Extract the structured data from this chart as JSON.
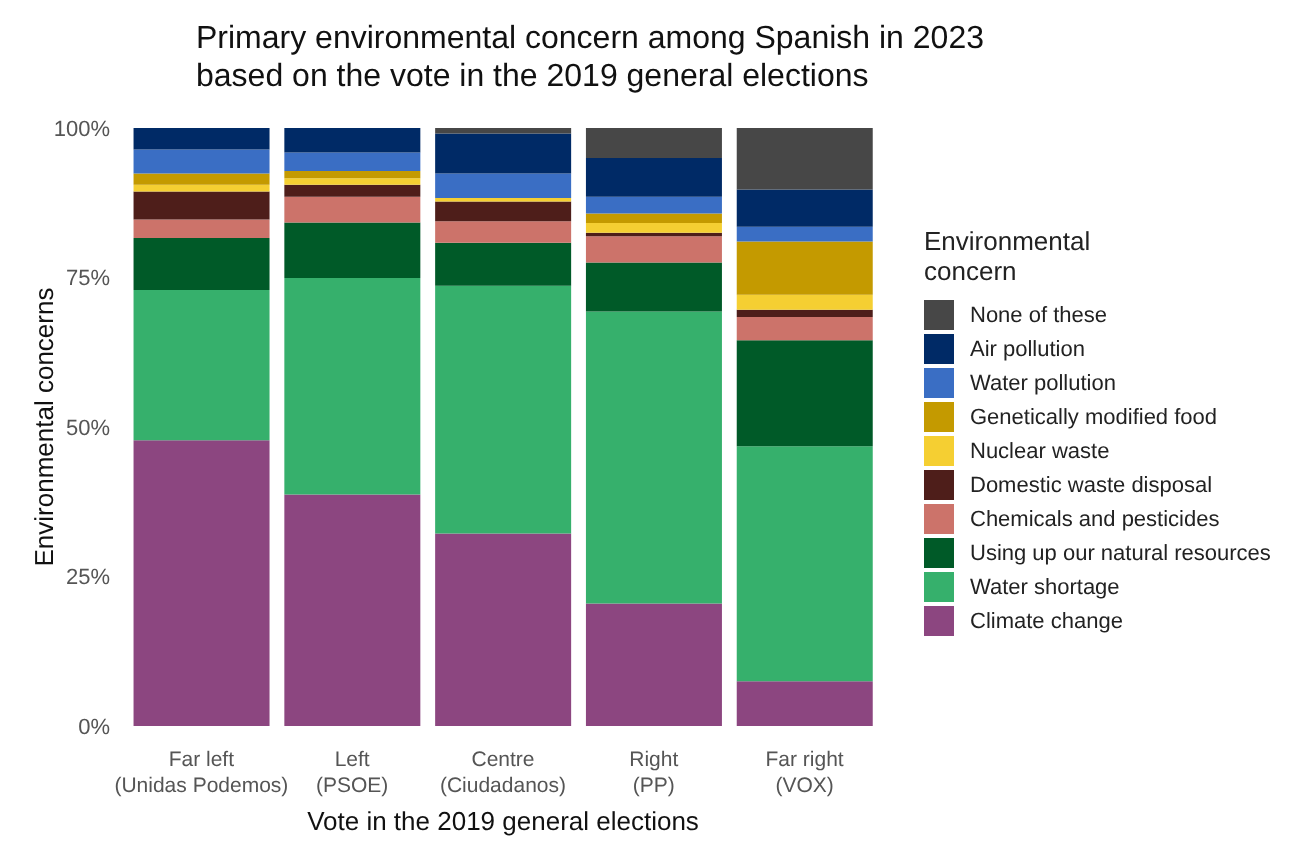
{
  "chart_data": {
    "type": "bar",
    "stacked": true,
    "title": "Primary environmental concern among Spanish in 2023\n based on the vote in the 2019 general elections",
    "xlabel": "Vote in the 2019 general elections",
    "ylabel": "Environmental concerns",
    "legend_title": "Environmental\n concern",
    "legend": "right",
    "grid": false,
    "categories": [
      "Far left\n(Unidas Podemos)",
      "Left\n(PSOE)",
      "Centre\n(Ciudadanos)",
      "Right\n(PP)",
      "Far right\n(VOX)"
    ],
    "ylim": [
      0,
      100
    ],
    "yticks": [
      {
        "value": 0,
        "label": "0%"
      },
      {
        "value": 25,
        "label": "25%"
      },
      {
        "value": 50,
        "label": "50%"
      },
      {
        "value": 75,
        "label": "75%"
      },
      {
        "value": 100,
        "label": "100%"
      }
    ],
    "series": [
      {
        "name": "Climate change",
        "color": "#8c4680",
        "values": [
          47.8,
          38.7,
          32.2,
          20.5,
          7.5
        ]
      },
      {
        "name": "Water shortage",
        "color": "#36b06c",
        "values": [
          25.1,
          36.2,
          41.4,
          48.8,
          39.3
        ]
      },
      {
        "name": "Using up our natural resources",
        "color": "#005a28",
        "values": [
          8.7,
          9.3,
          7.2,
          8.2,
          17.7
        ]
      },
      {
        "name": "Chemicals and pesticides",
        "color": "#cc736a",
        "values": [
          3.1,
          4.3,
          3.6,
          4.4,
          3.9
        ]
      },
      {
        "name": "Domestic waste disposal",
        "color": "#4e1e1a",
        "values": [
          4.7,
          2.0,
          3.3,
          0.6,
          1.2
        ]
      },
      {
        "name": "Nuclear waste",
        "color": "#f5cf32",
        "values": [
          1.1,
          1.1,
          0.6,
          1.6,
          2.5
        ]
      },
      {
        "name": "Genetically modified food",
        "color": "#c49a00",
        "values": [
          1.9,
          1.2,
          0,
          1.6,
          8.9
        ]
      },
      {
        "name": "Water pollution",
        "color": "#3a6ec4",
        "values": [
          4.0,
          3.1,
          4.1,
          2.8,
          2.5
        ]
      },
      {
        "name": "Air pollution",
        "color": "#002a66",
        "values": [
          3.6,
          4.1,
          6.7,
          6.5,
          6.2
        ]
      },
      {
        "name": "None of these",
        "color": "#474747",
        "values": [
          0,
          0,
          0.9,
          5.0,
          10.3
        ]
      }
    ]
  }
}
